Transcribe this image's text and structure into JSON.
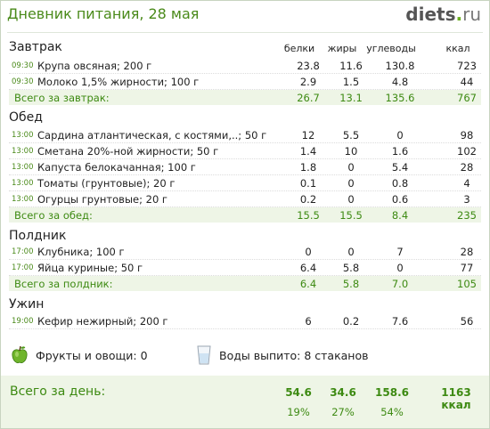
{
  "header": {
    "title": "Дневник питания, 28 мая",
    "logo_main": "diets",
    "logo_dot": ".",
    "logo_tld": "ru"
  },
  "columns": {
    "protein": "белки",
    "fat": "жиры",
    "carbs": "углеводы",
    "kcal": "ккал"
  },
  "meals": [
    {
      "title": "Завтрак",
      "items": [
        {
          "time": "09:30",
          "name": "Крупа овсяная; 200 г",
          "protein": "23.8",
          "fat": "11.6",
          "carbs": "130.8",
          "kcal": "723"
        },
        {
          "time": "09:30",
          "name": "Молоко 1,5% жирности; 100 г",
          "protein": "2.9",
          "fat": "1.5",
          "carbs": "4.8",
          "kcal": "44"
        }
      ],
      "total": {
        "label": "Всего за завтрак:",
        "protein": "26.7",
        "fat": "13.1",
        "carbs": "135.6",
        "kcal": "767"
      }
    },
    {
      "title": "Обед",
      "items": [
        {
          "time": "13:00",
          "name": "Сардина атлантическая, с костями,..; 50 г",
          "protein": "12",
          "fat": "5.5",
          "carbs": "0",
          "kcal": "98"
        },
        {
          "time": "13:00",
          "name": "Сметана 20%-ной жирности; 50 г",
          "protein": "1.4",
          "fat": "10",
          "carbs": "1.6",
          "kcal": "102"
        },
        {
          "time": "13:00",
          "name": "Капуста белокачанная; 100 г",
          "protein": "1.8",
          "fat": "0",
          "carbs": "5.4",
          "kcal": "28"
        },
        {
          "time": "13:00",
          "name": "Томаты (грунтовые); 20 г",
          "protein": "0.1",
          "fat": "0",
          "carbs": "0.8",
          "kcal": "4"
        },
        {
          "time": "13:00",
          "name": "Огурцы грунтовые; 20 г",
          "protein": "0.2",
          "fat": "0",
          "carbs": "0.6",
          "kcal": "3"
        }
      ],
      "total": {
        "label": "Всего за обед:",
        "protein": "15.5",
        "fat": "15.5",
        "carbs": "8.4",
        "kcal": "235"
      }
    },
    {
      "title": "Полдник",
      "items": [
        {
          "time": "17:00",
          "name": "Клубника; 100 г",
          "protein": "0",
          "fat": "0",
          "carbs": "7",
          "kcal": "28"
        },
        {
          "time": "17:00",
          "name": "Яйца куриные; 50 г",
          "protein": "6.4",
          "fat": "5.8",
          "carbs": "0",
          "kcal": "77"
        }
      ],
      "total": {
        "label": "Всего за полдник:",
        "protein": "6.4",
        "fat": "5.8",
        "carbs": "7.0",
        "kcal": "105"
      }
    },
    {
      "title": "Ужин",
      "items": [
        {
          "time": "19:00",
          "name": "Кефир нежирный; 200 г",
          "protein": "6",
          "fat": "0.2",
          "carbs": "7.6",
          "kcal": "56"
        }
      ]
    }
  ],
  "extras": {
    "fruits": "Фрукты и овощи: 0",
    "water": "Воды выпито: 8 стаканов",
    "fruit_icon": "apple-icon",
    "water_icon": "glass-icon"
  },
  "day": {
    "label": "Всего за день:",
    "protein": "54.6",
    "fat": "34.6",
    "carbs": "158.6",
    "kcal": "1163 ккал",
    "protein_pct": "19%",
    "fat_pct": "27%",
    "carbs_pct": "54%"
  },
  "colors": {
    "accent": "#4a8a1a",
    "total_bg": "#eef5e6"
  }
}
